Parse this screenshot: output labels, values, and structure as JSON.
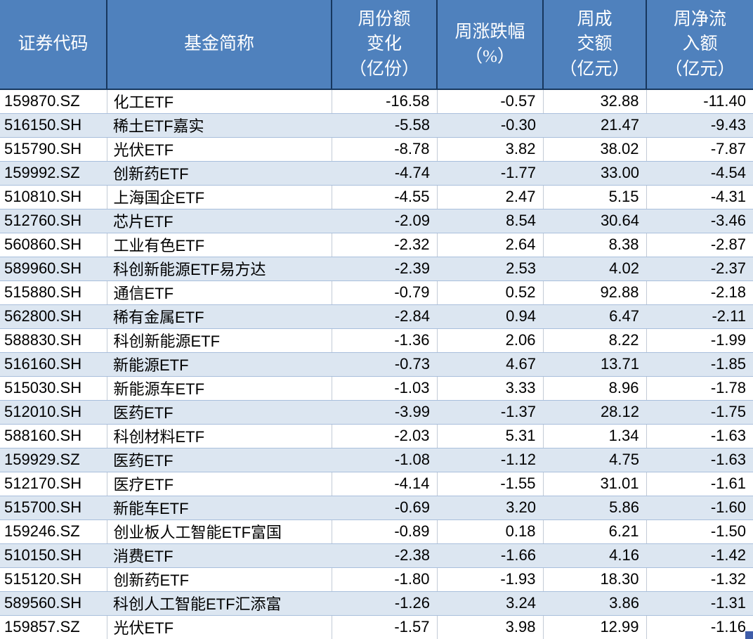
{
  "table": {
    "columns": [
      {
        "label": "证券代码"
      },
      {
        "label": "基金简称"
      },
      {
        "label": "周份额\n变化\n（亿份）"
      },
      {
        "label": "周涨跌幅\n（%）"
      },
      {
        "label": "周成\n交额\n（亿元）"
      },
      {
        "label": "周净流\n入额\n（亿元）"
      }
    ],
    "rows": [
      [
        "159870.SZ",
        "化工ETF",
        "-16.58",
        "-0.57",
        "32.88",
        "-11.40"
      ],
      [
        "516150.SH",
        "稀土ETF嘉实",
        "-5.58",
        "-0.30",
        "21.47",
        "-9.43"
      ],
      [
        "515790.SH",
        "光伏ETF",
        "-8.78",
        "3.82",
        "38.02",
        "-7.87"
      ],
      [
        "159992.SZ",
        "创新药ETF",
        "-4.74",
        "-1.77",
        "33.00",
        "-4.54"
      ],
      [
        "510810.SH",
        "上海国企ETF",
        "-4.55",
        "2.47",
        "5.15",
        "-4.31"
      ],
      [
        "512760.SH",
        "芯片ETF",
        "-2.09",
        "8.54",
        "30.64",
        "-3.46"
      ],
      [
        "560860.SH",
        "工业有色ETF",
        "-2.32",
        "2.64",
        "8.38",
        "-2.87"
      ],
      [
        "589960.SH",
        "科创新能源ETF易方达",
        "-2.39",
        "2.53",
        "4.02",
        "-2.37"
      ],
      [
        "515880.SH",
        "通信ETF",
        "-0.79",
        "0.52",
        "92.88",
        "-2.18"
      ],
      [
        "562800.SH",
        "稀有金属ETF",
        "-2.84",
        "0.94",
        "6.47",
        "-2.11"
      ],
      [
        "588830.SH",
        "科创新能源ETF",
        "-1.36",
        "2.06",
        "8.22",
        "-1.99"
      ],
      [
        "516160.SH",
        "新能源ETF",
        "-0.73",
        "4.67",
        "13.71",
        "-1.85"
      ],
      [
        "515030.SH",
        "新能源车ETF",
        "-1.03",
        "3.33",
        "8.96",
        "-1.78"
      ],
      [
        "512010.SH",
        "医药ETF",
        "-3.99",
        "-1.37",
        "28.12",
        "-1.75"
      ],
      [
        "588160.SH",
        "科创材料ETF",
        "-2.03",
        "5.31",
        "1.34",
        "-1.63"
      ],
      [
        "159929.SZ",
        "医药ETF",
        "-1.08",
        "-1.12",
        "4.75",
        "-1.63"
      ],
      [
        "512170.SH",
        "医疗ETF",
        "-4.14",
        "-1.55",
        "31.01",
        "-1.61"
      ],
      [
        "515700.SH",
        "新能车ETF",
        "-0.69",
        "3.20",
        "5.86",
        "-1.60"
      ],
      [
        "159246.SZ",
        "创业板人工智能ETF富国",
        "-0.89",
        "0.18",
        "6.21",
        "-1.50"
      ],
      [
        "510150.SH",
        "消费ETF",
        "-2.38",
        "-1.66",
        "4.16",
        "-1.42"
      ],
      [
        "515120.SH",
        "创新药ETF",
        "-1.80",
        "-1.93",
        "18.30",
        "-1.32"
      ],
      [
        "589560.SH",
        "科创人工智能ETF汇添富",
        "-1.26",
        "3.24",
        "3.86",
        "-1.31"
      ],
      [
        "159857.SZ",
        "光伏ETF",
        "-1.57",
        "3.98",
        "12.99",
        "-1.16"
      ]
    ]
  },
  "colors": {
    "header_background": "#4F81BD",
    "header_text": "#FFFFFF",
    "header_separator": "#17375E",
    "zebra_row": "#DCE6F1",
    "row_border": "#A9BFDC",
    "gridline": "#C3CBD6",
    "fill_handle": "#3F5DA9"
  }
}
